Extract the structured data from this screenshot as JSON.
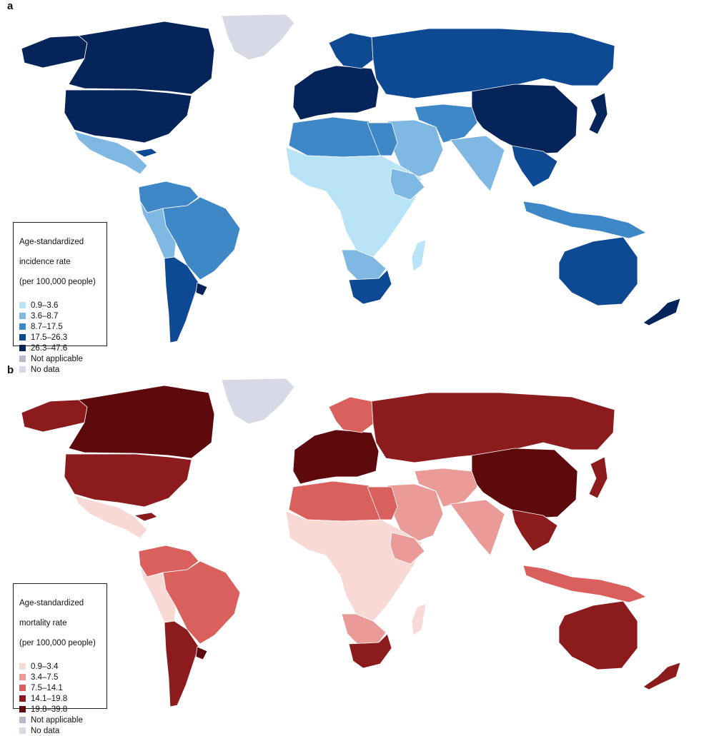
{
  "panels": [
    {
      "letter": "a",
      "legend": {
        "title_lines": [
          "Age-standardized",
          "incidence rate",
          "(per 100,000 people)"
        ],
        "items": [
          {
            "label": "0.9–3.6",
            "color": "#b9e3f7"
          },
          {
            "label": "3.6–8.7",
            "color": "#7fb8e3"
          },
          {
            "label": "8.7–17.5",
            "color": "#3f88c8"
          },
          {
            "label": "17.5–26.3",
            "color": "#0d4a93"
          },
          {
            "label": "26.3–47.6",
            "color": "#04245a"
          },
          {
            "label": "Not applicable",
            "color": "#b5b9cc"
          },
          {
            "label": "No data",
            "color": "#d7dae6"
          }
        ]
      }
    },
    {
      "letter": "b",
      "legend": {
        "title_lines": [
          "Age-standardized",
          "mortality rate",
          "(per 100,000 people)"
        ],
        "items": [
          {
            "label": "0.9–3.4",
            "color": "#f8d9d6"
          },
          {
            "label": "3.4–7.5",
            "color": "#ea9a97"
          },
          {
            "label": "7.5–14.1",
            "color": "#d9605c"
          },
          {
            "label": "14.1–19.8",
            "color": "#8c1b1d"
          },
          {
            "label": "19.8–39.8",
            "color": "#5e0a0c"
          },
          {
            "label": "Not applicable",
            "color": "#b5b9cc"
          },
          {
            "label": "No data",
            "color": "#d7dae6"
          }
        ]
      }
    }
  ],
  "regions": [
    {
      "id": "greenland",
      "a": 6,
      "b": 6
    },
    {
      "id": "alaska",
      "a": 4,
      "b": 3
    },
    {
      "id": "canada",
      "a": 4,
      "b": 4
    },
    {
      "id": "usa",
      "a": 4,
      "b": 3
    },
    {
      "id": "mexico-central-america",
      "a": 1,
      "b": 0
    },
    {
      "id": "cuba",
      "a": 3,
      "b": 3
    },
    {
      "id": "northern-south-america",
      "a": 2,
      "b": 2
    },
    {
      "id": "brazil",
      "a": 2,
      "b": 2
    },
    {
      "id": "andes",
      "a": 1,
      "b": 0
    },
    {
      "id": "argentina-chile",
      "a": 3,
      "b": 3
    },
    {
      "id": "uruguay",
      "a": 4,
      "b": 4
    },
    {
      "id": "western-europe",
      "a": 4,
      "b": 4
    },
    {
      "id": "scandinavia",
      "a": 3,
      "b": 2
    },
    {
      "id": "russia-central-asia",
      "a": 3,
      "b": 3
    },
    {
      "id": "china-mongolia",
      "a": 4,
      "b": 4
    },
    {
      "id": "japan",
      "a": 4,
      "b": 3
    },
    {
      "id": "middle-east",
      "a": 1,
      "b": 1
    },
    {
      "id": "iran-afghanistan",
      "a": 2,
      "b": 1
    },
    {
      "id": "india",
      "a": 1,
      "b": 1
    },
    {
      "id": "southeast-asia",
      "a": 3,
      "b": 3
    },
    {
      "id": "north-africa",
      "a": 2,
      "b": 2
    },
    {
      "id": "egypt",
      "a": 2,
      "b": 2
    },
    {
      "id": "sub-saharan-africa",
      "a": 0,
      "b": 0
    },
    {
      "id": "ethiopia",
      "a": 1,
      "b": 1
    },
    {
      "id": "southern-africa",
      "a": 1,
      "b": 1
    },
    {
      "id": "south-africa",
      "a": 3,
      "b": 3
    },
    {
      "id": "madagascar",
      "a": 0,
      "b": 0
    },
    {
      "id": "indonesia-png",
      "a": 2,
      "b": 2
    },
    {
      "id": "australia",
      "a": 3,
      "b": 3
    },
    {
      "id": "new-zealand",
      "a": 4,
      "b": 3
    }
  ]
}
